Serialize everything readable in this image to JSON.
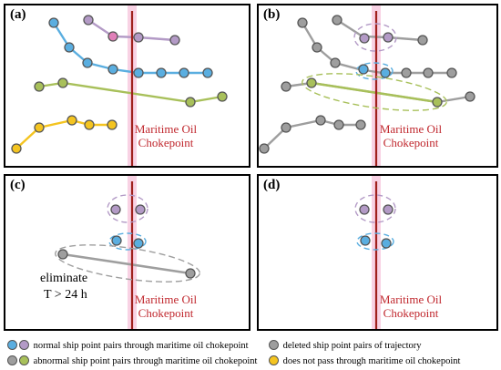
{
  "panels": {
    "a": {
      "label": "(a)",
      "chokepoint": [
        "Maritime Oil",
        "Chokepoint"
      ]
    },
    "b": {
      "label": "(b)",
      "chokepoint": [
        "Maritime Oil",
        "Chokepoint"
      ]
    },
    "c": {
      "label": "(c)",
      "chokepoint": [
        "Maritime Oil",
        "Chokepoint"
      ],
      "note": [
        "eliminate",
        "T > 24 h"
      ]
    },
    "d": {
      "label": "(d)",
      "chokepoint": [
        "Maritime Oil",
        "Chokepoint"
      ]
    }
  },
  "legend": {
    "normal": "normal ship point pairs through maritime oil chokepoint",
    "abnormal": "abnormal ship point pairs through maritime oil chokepoint",
    "deleted": "deleted ship point pairs of trajectory",
    "not_pass": "does not pass through maritime oil chokepoint"
  },
  "colors": {
    "blue": "#5aaee0",
    "purple": "#b39ac6",
    "green": "#a8c05a",
    "yellow": "#f4c420",
    "gray": "#9e9e9e",
    "chokepoint_line": "#a0211d",
    "chokepoint_band": "#f8d2e4"
  }
}
